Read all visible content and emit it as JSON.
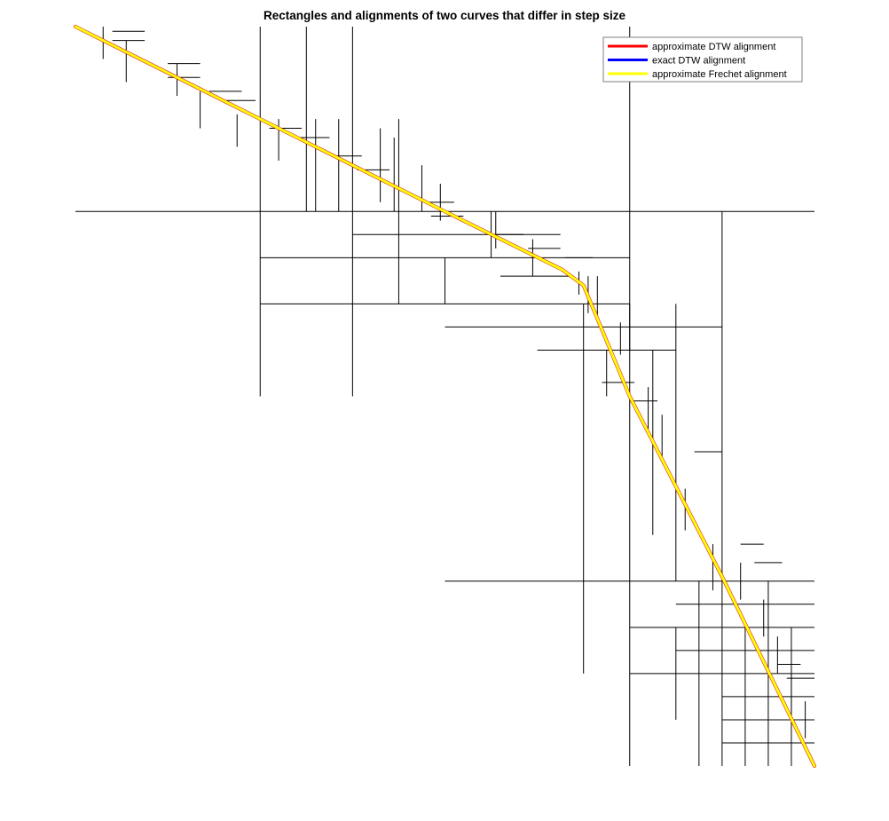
{
  "chart_data": {
    "type": "line",
    "title": "Rectangles and alignments of two curves that differ in step size",
    "xlabel": "",
    "ylabel": "",
    "xlim": [
      0,
      800
    ],
    "ylim": [
      0,
      800
    ],
    "y_direction": "reversed",
    "axes_visible": false,
    "grid": false,
    "legend_position": "top-right",
    "colors": {
      "approx_dtw": "#ff0000",
      "exact_dtw": "#0000ff",
      "approx_frechet": "#ffff00",
      "rectangles": "#000000"
    },
    "series": [
      {
        "name": "approximate DTW alignment",
        "color": "#ff0000",
        "points": [
          [
            0,
            0
          ],
          [
            200,
            100
          ],
          [
            400,
            200
          ],
          [
            527,
            263
          ],
          [
            550,
            280
          ],
          [
            600,
            400
          ],
          [
            700,
            595
          ],
          [
            800,
            800
          ]
        ]
      },
      {
        "name": "exact DTW alignment",
        "color": "#0000ff",
        "points": [
          [
            0,
            0
          ],
          [
            200,
            100
          ],
          [
            400,
            200
          ],
          [
            527,
            263
          ],
          [
            550,
            280
          ],
          [
            600,
            400
          ],
          [
            700,
            595
          ],
          [
            800,
            800
          ]
        ]
      },
      {
        "name": "approximate Frechet alignment",
        "color": "#ffff00",
        "points": [
          [
            0,
            0
          ],
          [
            200,
            100
          ],
          [
            400,
            200
          ],
          [
            527,
            263
          ],
          [
            550,
            280
          ],
          [
            600,
            400
          ],
          [
            700,
            595
          ],
          [
            800,
            800
          ]
        ]
      }
    ],
    "rectangle_lines": {
      "horizontal": [
        [
          0,
          800,
          200
        ],
        [
          200,
          600,
          250
        ],
        [
          300,
          525,
          225
        ],
        [
          200,
          600,
          300
        ],
        [
          400,
          700,
          325
        ],
        [
          500,
          650,
          350
        ],
        [
          400,
          800,
          600
        ],
        [
          650,
          800,
          625
        ],
        [
          600,
          800,
          650
        ],
        [
          650,
          800,
          675
        ],
        [
          600,
          800,
          700
        ],
        [
          700,
          800,
          725
        ],
        [
          700,
          800,
          750
        ],
        [
          700,
          800,
          775
        ],
        [
          40,
          75,
          5
        ],
        [
          40,
          75,
          15
        ],
        [
          100,
          135,
          40
        ],
        [
          100,
          135,
          55
        ],
        [
          145,
          180,
          70
        ],
        [
          160,
          195,
          80
        ],
        [
          210,
          245,
          110
        ],
        [
          240,
          275,
          120
        ],
        [
          280,
          310,
          140
        ],
        [
          305,
          340,
          155
        ],
        [
          380,
          410,
          190
        ],
        [
          385,
          420,
          205
        ],
        [
          450,
          485,
          225
        ],
        [
          490,
          525,
          240
        ],
        [
          530,
          560,
          250
        ],
        [
          460,
          535,
          270
        ],
        [
          570,
          605,
          385
        ],
        [
          600,
          630,
          405
        ],
        [
          670,
          700,
          460
        ],
        [
          720,
          745,
          560
        ],
        [
          735,
          765,
          580
        ],
        [
          760,
          785,
          690
        ],
        [
          770,
          800,
          705
        ]
      ],
      "vertical": [
        [
          200,
          0,
          400
        ],
        [
          300,
          0,
          400
        ],
        [
          250,
          0,
          200
        ],
        [
          350,
          100,
          200
        ],
        [
          600,
          0,
          800
        ],
        [
          700,
          200,
          800
        ],
        [
          350,
          200,
          300
        ],
        [
          450,
          200,
          250
        ],
        [
          400,
          250,
          300
        ],
        [
          650,
          300,
          600
        ],
        [
          550,
          300,
          700
        ],
        [
          600,
          300,
          350
        ],
        [
          575,
          350,
          400
        ],
        [
          625,
          350,
          550
        ],
        [
          675,
          600,
          800
        ],
        [
          650,
          650,
          750
        ],
        [
          725,
          650,
          800
        ],
        [
          750,
          600,
          800
        ],
        [
          775,
          650,
          800
        ],
        [
          30,
          0,
          35
        ],
        [
          55,
          15,
          60
        ],
        [
          110,
          40,
          75
        ],
        [
          135,
          70,
          110
        ],
        [
          175,
          95,
          130
        ],
        [
          220,
          100,
          145
        ],
        [
          260,
          100,
          200
        ],
        [
          285,
          100,
          200
        ],
        [
          330,
          110,
          190
        ],
        [
          345,
          120,
          200
        ],
        [
          375,
          150,
          200
        ],
        [
          395,
          170,
          210
        ],
        [
          455,
          200,
          240
        ],
        [
          495,
          230,
          270
        ],
        [
          545,
          265,
          290
        ],
        [
          555,
          270,
          310
        ],
        [
          565,
          270,
          315
        ],
        [
          590,
          320,
          355
        ],
        [
          620,
          390,
          435
        ],
        [
          635,
          420,
          470
        ],
        [
          660,
          500,
          545
        ],
        [
          690,
          560,
          610
        ],
        [
          720,
          580,
          620
        ],
        [
          745,
          620,
          660
        ],
        [
          760,
          660,
          700
        ],
        [
          775,
          700,
          740
        ],
        [
          790,
          730,
          770
        ]
      ]
    }
  }
}
